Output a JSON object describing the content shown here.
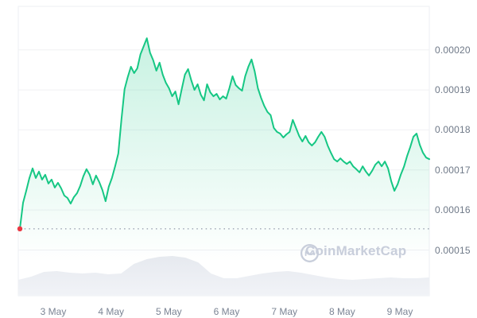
{
  "watermark": {
    "label": "CoinMarketCap"
  },
  "chart_data": {
    "type": "area",
    "x_ticks": [
      "3 May",
      "4 May",
      "5 May",
      "6 May",
      "7 May",
      "8 May",
      "9 May"
    ],
    "y_ticks": [
      "0.00020",
      "0.00019",
      "0.00018",
      "0.00017",
      "0.00016",
      "0.00015"
    ],
    "ylim": [
      0.00015,
      0.0002
    ],
    "grid": "horizontal",
    "legend": "none",
    "line_color": "#16c784",
    "open_marker_color": "#ea3943",
    "open_price": 0.0001553,
    "values": [
      0.0001553,
      0.0001618,
      0.0001648,
      0.000168,
      0.0001704,
      0.000168,
      0.0001696,
      0.0001676,
      0.0001688,
      0.0001666,
      0.0001676,
      0.0001656,
      0.0001668,
      0.0001654,
      0.0001636,
      0.000163,
      0.0001616,
      0.0001632,
      0.0001642,
      0.000166,
      0.0001684,
      0.0001702,
      0.0001688,
      0.0001664,
      0.0001686,
      0.000167,
      0.000165,
      0.0001622,
      0.0001658,
      0.000168,
      0.0001709,
      0.0001741,
      0.0001827,
      0.0001902,
      0.0001932,
      0.0001958,
      0.0001942,
      0.0001954,
      0.0001989,
      0.0002009,
      0.0002029,
      0.0001993,
      0.0001974,
      0.0001948,
      0.0001968,
      0.0001938,
      0.0001918,
      0.0001904,
      0.0001884,
      0.0001896,
      0.0001864,
      0.0001902,
      0.0001938,
      0.0001952,
      0.0001924,
      0.00019,
      0.0001914,
      0.0001888,
      0.0001874,
      0.0001914,
      0.0001894,
      0.0001884,
      0.000189,
      0.0001876,
      0.0001884,
      0.0001878,
      0.0001904,
      0.0001934,
      0.0001912,
      0.0001904,
      0.0001898,
      0.0001934,
      0.0001958,
      0.0001976,
      0.0001946,
      0.0001904,
      0.000188,
      0.000186,
      0.0001845,
      0.0001837,
      0.0001805,
      0.0001795,
      0.0001791,
      0.0001781,
      0.0001789,
      0.0001795,
      0.0001825,
      0.0001805,
      0.0001785,
      0.0001771,
      0.0001785,
      0.0001769,
      0.0001761,
      0.0001769,
      0.0001783,
      0.0001795,
      0.0001783,
      0.0001761,
      0.0001743,
      0.0001727,
      0.0001721,
      0.0001729,
      0.0001721,
      0.0001715,
      0.0001721,
      0.0001709,
      0.0001702,
      0.0001694,
      0.0001709,
      0.0001696,
      0.0001686,
      0.0001698,
      0.0001713,
      0.0001721,
      0.0001709,
      0.0001721,
      0.0001704,
      0.0001672,
      0.0001648,
      0.0001664,
      0.0001688,
      0.0001708,
      0.0001735,
      0.0001757,
      0.0001783,
      0.0001791,
      0.0001763,
      0.0001743,
      0.0001731,
      0.0001727
    ],
    "volume_profile": [
      0.4,
      0.48,
      0.6,
      0.62,
      0.58,
      0.56,
      0.58,
      0.54,
      0.56,
      0.8,
      0.92,
      0.98,
      1.0,
      0.96,
      0.84,
      0.56,
      0.44,
      0.44,
      0.5,
      0.56,
      0.6,
      0.62,
      0.58,
      0.52,
      0.46,
      0.42,
      0.4,
      0.42,
      0.44,
      0.46,
      0.44,
      0.44,
      0.46
    ]
  }
}
